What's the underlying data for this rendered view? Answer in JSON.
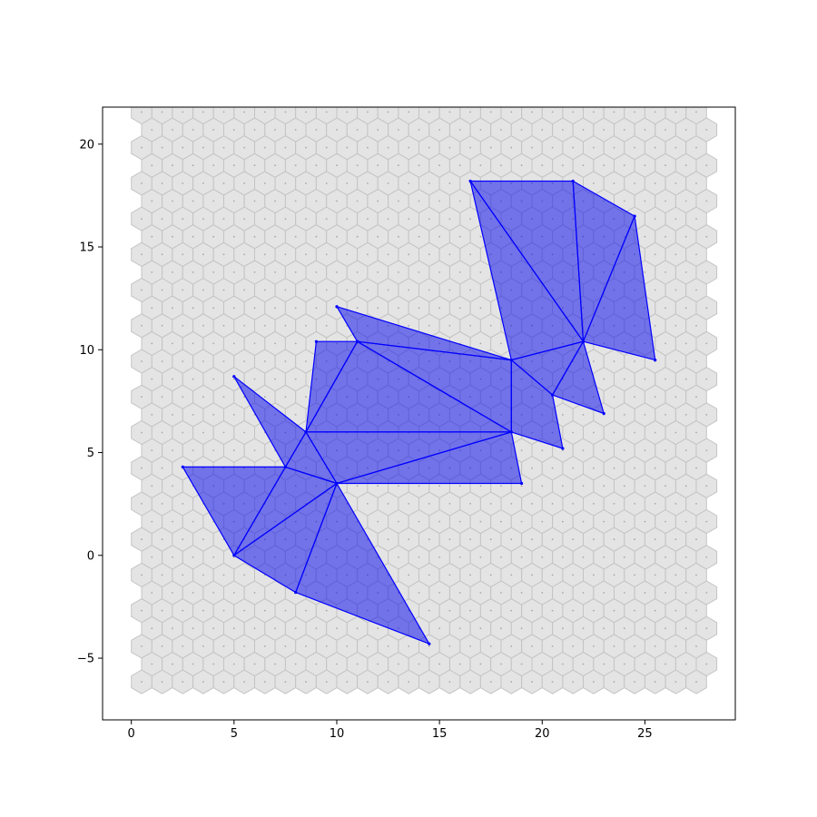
{
  "chart_data": {
    "type": "scatter",
    "title": "",
    "xlabel": "",
    "ylabel": "",
    "xlim": [
      -1.4,
      29.4
    ],
    "ylim": [
      -8.0,
      21.8
    ],
    "x_ticks": [
      0,
      5,
      10,
      15,
      20,
      25
    ],
    "y_ticks": [
      -5,
      0,
      5,
      10,
      15,
      20
    ],
    "x_tick_labels": [
      "0",
      "5",
      "10",
      "15",
      "20",
      "25"
    ],
    "y_tick_labels": [
      "−5",
      "0",
      "5",
      "10",
      "15",
      "20"
    ],
    "grid": false,
    "legend": "none",
    "background_hex_grid": {
      "rows": 36,
      "cols": 28,
      "x_start": 0.5,
      "y_start": -6.15,
      "x_step": 1.0,
      "y_step": 0.866,
      "fill_color": "#e4e4e4",
      "edge_color": "#c4c4c4",
      "center_dot_color": "#a8a8a8"
    },
    "polygon_color": "#0000ee",
    "polygon_edge_color": "#0000ff",
    "polygon_opacity": 0.5,
    "polygons": [
      [
        [
          18.5,
          6.0
        ],
        [
          19.0,
          3.5
        ],
        [
          10.0,
          3.5
        ]
      ],
      [
        [
          18.5,
          6.0
        ],
        [
          10.0,
          3.5
        ],
        [
          8.5,
          6.0
        ]
      ],
      [
        [
          18.5,
          6.0
        ],
        [
          8.5,
          6.0
        ],
        [
          11.0,
          10.4
        ]
      ],
      [
        [
          18.5,
          6.0
        ],
        [
          11.0,
          10.4
        ],
        [
          18.5,
          9.5
        ]
      ],
      [
        [
          8.5,
          6.0
        ],
        [
          9.0,
          10.4
        ],
        [
          11.0,
          10.4
        ]
      ],
      [
        [
          18.5,
          9.5
        ],
        [
          11.0,
          10.4
        ],
        [
          10.0,
          12.1
        ]
      ],
      [
        [
          18.5,
          9.5
        ],
        [
          20.5,
          7.8
        ],
        [
          21.0,
          5.2
        ],
        [
          18.5,
          6.0
        ]
      ],
      [
        [
          18.5,
          9.5
        ],
        [
          22.0,
          10.4
        ],
        [
          20.5,
          7.8
        ]
      ],
      [
        [
          22.0,
          10.4
        ],
        [
          23.0,
          6.9
        ],
        [
          20.5,
          7.8
        ]
      ],
      [
        [
          18.5,
          9.5
        ],
        [
          16.5,
          18.2
        ],
        [
          22.0,
          10.4
        ]
      ],
      [
        [
          16.5,
          18.2
        ],
        [
          21.5,
          18.2
        ],
        [
          22.0,
          10.4
        ]
      ],
      [
        [
          21.5,
          18.2
        ],
        [
          24.5,
          16.5
        ],
        [
          22.0,
          10.4
        ]
      ],
      [
        [
          24.5,
          16.5
        ],
        [
          25.5,
          9.5
        ],
        [
          22.0,
          10.4
        ]
      ],
      [
        [
          10.0,
          3.5
        ],
        [
          8.5,
          6.0
        ],
        [
          7.5,
          4.3
        ]
      ],
      [
        [
          8.5,
          6.0
        ],
        [
          5.0,
          8.7
        ],
        [
          7.5,
          4.3
        ]
      ],
      [
        [
          7.5,
          4.3
        ],
        [
          5.0,
          0.0
        ],
        [
          10.0,
          3.5
        ]
      ],
      [
        [
          7.5,
          4.3
        ],
        [
          2.5,
          4.3
        ],
        [
          5.0,
          0.0
        ]
      ],
      [
        [
          5.0,
          0.0
        ],
        [
          8.0,
          -1.8
        ],
        [
          10.0,
          3.5
        ]
      ],
      [
        [
          10.0,
          3.5
        ],
        [
          8.0,
          -1.8
        ],
        [
          14.5,
          -4.3
        ]
      ]
    ]
  }
}
